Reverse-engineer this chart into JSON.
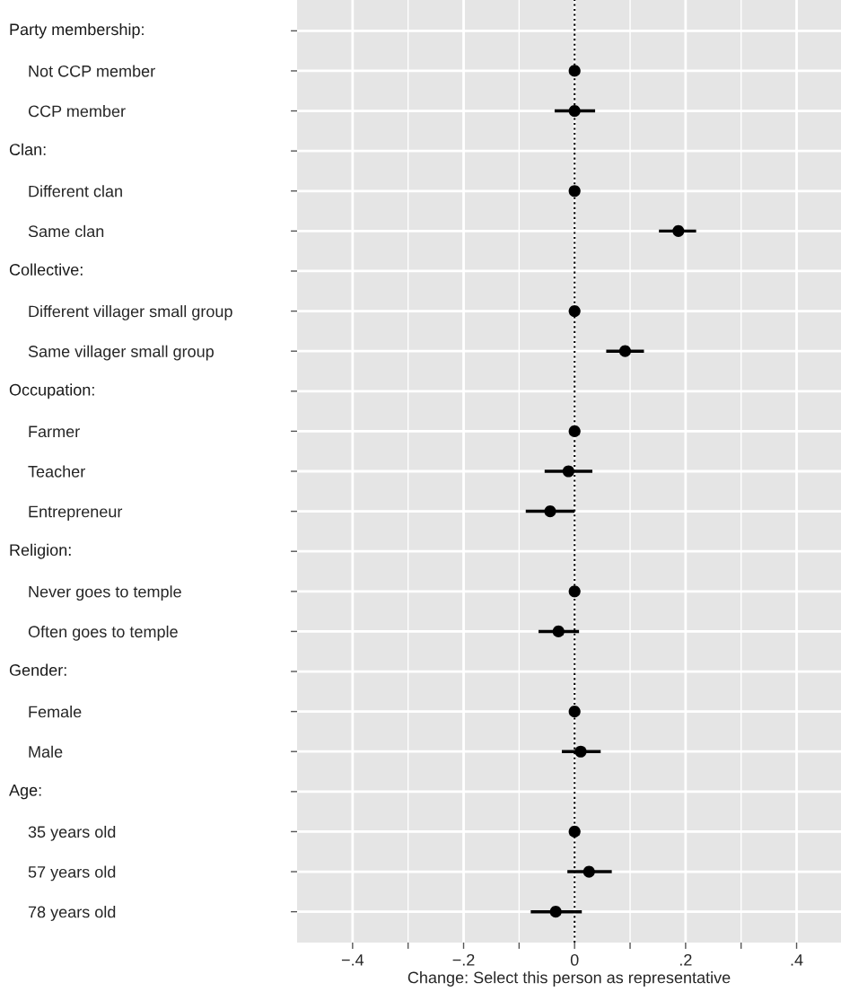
{
  "chart_data": {
    "type": "scatter",
    "orientation": "horizontal",
    "xlabel": "Change: Select this person as representative",
    "annotations": [
      "Party membership:",
      "Clan:",
      "Collective:",
      "Occupation:",
      "Religion:",
      "Gender:",
      "Age:"
    ],
    "categories": [
      null,
      "Not CCP member",
      "CCP member",
      null,
      "Different clan",
      "Same clan",
      null,
      "Different villager small group",
      "Same villager small group",
      null,
      "Farmer",
      "Teacher",
      "Entrepreneur",
      null,
      "Never goes to temple",
      "Often goes to temple",
      null,
      "Female",
      "Male",
      null,
      "35 years old",
      "57 years old",
      "78 years old"
    ],
    "values": [
      null,
      0,
      0,
      null,
      0,
      0.187,
      null,
      0,
      0.091,
      null,
      0,
      -0.011,
      -0.044,
      null,
      0,
      -0.029,
      null,
      0,
      0.011,
      null,
      0,
      0.026,
      -0.034
    ],
    "errors": [
      null,
      null,
      [
        -0.036,
        0.037
      ],
      null,
      null,
      [
        0.152,
        0.219
      ],
      null,
      null,
      [
        0.057,
        0.125
      ],
      null,
      null,
      [
        -0.054,
        0.032
      ],
      [
        -0.088,
        0
      ],
      null,
      null,
      [
        -0.065,
        0.008
      ],
      null,
      null,
      [
        -0.023,
        0.047
      ],
      null,
      null,
      [
        -0.013,
        0.067
      ],
      [
        -0.079,
        0.013
      ]
    ],
    "color": "#000000",
    "marker": "circle",
    "xlim": [
      -0.5,
      0.48
    ],
    "xticks": [
      {
        "value": -0.4,
        "label": "−.4"
      },
      {
        "value": -0.3,
        "label": null
      },
      {
        "value": -0.2,
        "label": "−.2"
      },
      {
        "value": -0.1,
        "label": null
      },
      0,
      {
        "value": 0.1,
        "label": null
      },
      {
        "value": 0.2,
        "label": ".2"
      },
      {
        "value": 0.3,
        "label": null
      },
      {
        "value": 0.4,
        "label": ".4"
      }
    ],
    "ref_lines": [
      {
        "axis": "x",
        "value": 0,
        "line_style": "dotted",
        "color": "#000000"
      }
    ],
    "grid": true
  }
}
